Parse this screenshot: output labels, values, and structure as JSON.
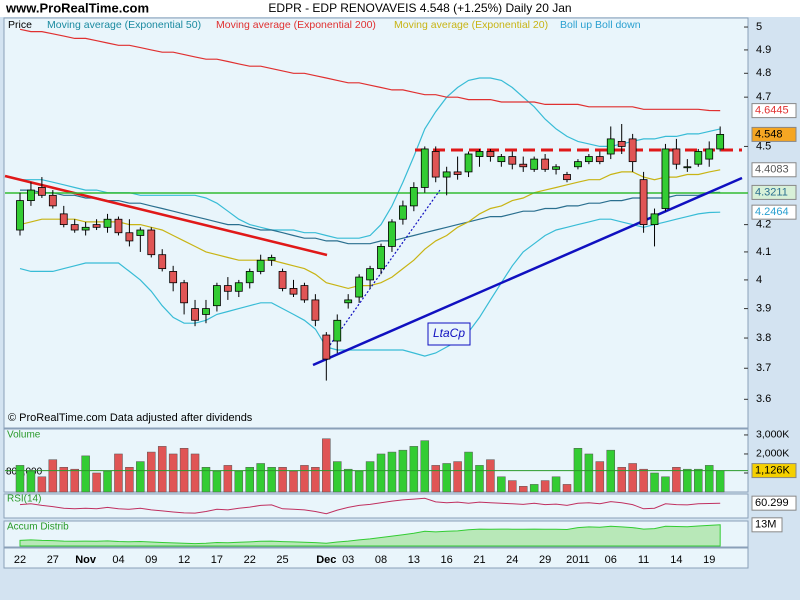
{
  "chart_data": {
    "type": "candlestick",
    "site": "www.ProRealTime.com",
    "title": "EDPR - EDP RENOVAVEIS   4.548 (+1.25%)   Daily  20 Jan",
    "price_label": "Price",
    "copyright": "© ProRealTime.com Data adjusted after dividends",
    "annotation": "LtaCp",
    "log_scale": true,
    "up_color": "#33cc33",
    "down_color": "#e05555",
    "categories": [
      "22",
      null,
      null,
      "27",
      null,
      null,
      "Nov",
      null,
      null,
      "04",
      null,
      null,
      "09",
      null,
      null,
      "12",
      null,
      null,
      "17",
      null,
      null,
      "22",
      null,
      null,
      "25",
      null,
      null,
      null,
      "Dec",
      null,
      "03",
      null,
      null,
      "08",
      null,
      null,
      "13",
      null,
      null,
      "16",
      null,
      null,
      "21",
      null,
      null,
      "24",
      null,
      null,
      "29",
      null,
      null,
      "2011",
      null,
      null,
      "06",
      null,
      null,
      "11",
      null,
      null,
      "14",
      null,
      null,
      "19",
      null
    ],
    "open": [
      4.18,
      4.29,
      4.34,
      4.31,
      4.24,
      4.2,
      4.18,
      4.2,
      4.19,
      4.22,
      4.17,
      4.16,
      4.18,
      4.09,
      4.03,
      3.99,
      3.9,
      3.88,
      3.91,
      3.98,
      3.96,
      3.99,
      4.03,
      4.07,
      4.03,
      3.97,
      3.98,
      3.93,
      3.81,
      3.79,
      3.92,
      3.94,
      4.0,
      4.04,
      4.12,
      4.22,
      4.27,
      4.34,
      4.48,
      4.38,
      4.4,
      4.4,
      4.46,
      4.48,
      4.44,
      4.46,
      4.43,
      4.41,
      4.45,
      4.41,
      4.39,
      4.42,
      4.44,
      4.46,
      4.47,
      4.52,
      4.53,
      4.37,
      4.2,
      4.26,
      4.49,
      4.42,
      4.43,
      4.45,
      4.49
    ],
    "high": [
      4.32,
      4.36,
      4.38,
      4.33,
      4.27,
      4.22,
      4.21,
      4.22,
      4.24,
      4.23,
      4.22,
      4.19,
      4.19,
      4.11,
      4.05,
      4.0,
      3.93,
      3.93,
      3.99,
      4.01,
      4.0,
      4.04,
      4.09,
      4.09,
      4.04,
      4.0,
      3.99,
      3.95,
      3.82,
      3.88,
      3.95,
      4.02,
      4.05,
      4.13,
      4.22,
      4.29,
      4.36,
      4.5,
      4.5,
      4.42,
      4.46,
      4.48,
      4.49,
      4.49,
      4.47,
      4.48,
      4.46,
      4.46,
      4.47,
      4.43,
      4.4,
      4.45,
      4.47,
      4.48,
      4.58,
      4.59,
      4.55,
      4.4,
      4.26,
      4.51,
      4.53,
      4.45,
      4.49,
      4.52,
      4.58
    ],
    "low": [
      4.16,
      4.27,
      4.3,
      4.26,
      4.19,
      4.17,
      4.16,
      4.18,
      4.17,
      4.16,
      4.12,
      4.1,
      4.08,
      4.03,
      3.96,
      3.88,
      3.84,
      3.85,
      3.89,
      3.93,
      3.94,
      3.97,
      4.02,
      4.05,
      3.96,
      3.94,
      3.92,
      3.84,
      3.66,
      3.75,
      3.9,
      3.92,
      3.97,
      4.02,
      4.1,
      4.2,
      4.25,
      4.32,
      4.36,
      4.31,
      4.37,
      4.38,
      4.42,
      4.44,
      4.42,
      4.41,
      4.4,
      4.4,
      4.4,
      4.39,
      4.36,
      4.41,
      4.43,
      4.43,
      4.45,
      4.47,
      4.4,
      4.17,
      4.12,
      4.25,
      4.41,
      4.4,
      4.42,
      4.42,
      4.48
    ],
    "close": [
      4.29,
      4.33,
      4.31,
      4.27,
      4.2,
      4.18,
      4.19,
      4.19,
      4.22,
      4.17,
      4.14,
      4.18,
      4.09,
      4.04,
      3.99,
      3.92,
      3.86,
      3.9,
      3.98,
      3.96,
      3.99,
      4.03,
      4.07,
      4.08,
      3.97,
      3.95,
      3.93,
      3.86,
      3.73,
      3.86,
      3.93,
      4.01,
      4.04,
      4.12,
      4.21,
      4.27,
      4.34,
      4.49,
      4.38,
      4.4,
      4.39,
      4.47,
      4.48,
      4.46,
      4.46,
      4.43,
      4.42,
      4.45,
      4.41,
      4.42,
      4.37,
      4.44,
      4.46,
      4.44,
      4.53,
      4.5,
      4.44,
      4.2,
      4.24,
      4.49,
      4.43,
      4.42,
      4.48,
      4.49,
      4.548
    ],
    "ylim": [
      3.51,
      5.04
    ],
    "yticks": [
      5,
      4.9,
      4.8,
      4.7,
      4.5,
      4.2,
      4.1,
      4,
      3.9,
      3.8,
      3.7,
      3.6
    ],
    "series": [
      {
        "name": "Moving average (Exponential 50)",
        "color": "#2a6f8f",
        "values": [
          4.33,
          4.33,
          4.32,
          4.32,
          4.31,
          4.31,
          4.3,
          4.3,
          4.29,
          4.29,
          4.28,
          4.28,
          4.27,
          4.26,
          4.25,
          4.24,
          4.23,
          4.22,
          4.21,
          4.2,
          4.2,
          4.19,
          4.18,
          4.18,
          4.17,
          4.16,
          4.15,
          4.15,
          4.14,
          4.14,
          4.13,
          4.13,
          4.13,
          4.14,
          4.14,
          4.15,
          4.16,
          4.17,
          4.18,
          4.19,
          4.2,
          4.21,
          4.22,
          4.23,
          4.23,
          4.24,
          4.25,
          4.25,
          4.26,
          4.26,
          4.27,
          4.27,
          4.28,
          4.28,
          4.29,
          4.29,
          4.3,
          4.3,
          4.3,
          4.3,
          4.31,
          4.31,
          4.31,
          4.32,
          4.3211
        ]
      },
      {
        "name": "Moving average (Exponential 200)",
        "color": "#e03030",
        "values": [
          4.99,
          4.98,
          4.98,
          4.97,
          4.96,
          4.95,
          4.95,
          4.94,
          4.93,
          4.92,
          4.92,
          4.91,
          4.9,
          4.89,
          4.89,
          4.88,
          4.87,
          4.86,
          4.86,
          4.85,
          4.84,
          4.83,
          4.83,
          4.82,
          4.81,
          4.8,
          4.8,
          4.79,
          4.78,
          4.77,
          4.76,
          4.76,
          4.75,
          4.74,
          4.73,
          4.73,
          4.72,
          4.71,
          4.71,
          4.7,
          4.7,
          4.69,
          4.69,
          4.69,
          4.68,
          4.68,
          4.68,
          4.68,
          4.67,
          4.67,
          4.67,
          4.67,
          4.66,
          4.66,
          4.66,
          4.66,
          4.66,
          4.65,
          4.65,
          4.65,
          4.65,
          4.65,
          4.65,
          4.645,
          4.6445
        ]
      },
      {
        "name": "Moving average (Exponential 20)",
        "color": "#c8b414",
        "values": [
          4.2,
          4.21,
          4.22,
          4.22,
          4.22,
          4.22,
          4.21,
          4.21,
          4.21,
          4.21,
          4.2,
          4.2,
          4.19,
          4.18,
          4.16,
          4.14,
          4.12,
          4.1,
          4.09,
          4.08,
          4.07,
          4.07,
          4.07,
          4.07,
          4.06,
          4.05,
          4.04,
          4.02,
          3.99,
          3.98,
          3.97,
          3.98,
          3.98,
          3.99,
          4.01,
          4.04,
          4.07,
          4.11,
          4.14,
          4.16,
          4.19,
          4.21,
          4.24,
          4.26,
          4.27,
          4.29,
          4.3,
          4.32,
          4.33,
          4.34,
          4.35,
          4.36,
          4.37,
          4.37,
          4.39,
          4.4,
          4.4,
          4.38,
          4.37,
          4.38,
          4.38,
          4.39,
          4.39,
          4.4,
          4.4083
        ]
      }
    ],
    "bands": {
      "name": "Boll up Boll down",
      "color": "#38bcd6",
      "upper": [
        4.37,
        4.37,
        4.37,
        4.36,
        4.35,
        4.34,
        4.33,
        4.33,
        4.32,
        4.32,
        4.32,
        4.31,
        4.31,
        4.31,
        4.31,
        4.31,
        4.31,
        4.3,
        4.28,
        4.25,
        4.22,
        4.2,
        4.19,
        4.18,
        4.18,
        4.18,
        4.17,
        4.17,
        4.16,
        4.15,
        4.15,
        4.15,
        4.16,
        4.2,
        4.27,
        4.36,
        4.46,
        4.57,
        4.64,
        4.7,
        4.74,
        4.77,
        4.78,
        4.78,
        4.77,
        4.74,
        4.7,
        4.66,
        4.61,
        4.57,
        4.54,
        4.52,
        4.51,
        4.5,
        4.5,
        4.51,
        4.52,
        4.53,
        4.53,
        4.54,
        4.54,
        4.55,
        4.55,
        4.56,
        4.57
      ],
      "lower": [
        4.04,
        4.03,
        4.03,
        4.03,
        4.04,
        4.05,
        4.06,
        4.06,
        4.06,
        4.06,
        4.03,
        4.0,
        3.96,
        3.91,
        3.87,
        3.85,
        3.85,
        3.86,
        3.88,
        3.89,
        3.9,
        3.91,
        3.92,
        3.92,
        3.9,
        3.88,
        3.86,
        3.83,
        3.77,
        3.76,
        3.76,
        3.76,
        3.76,
        3.76,
        3.76,
        3.76,
        3.75,
        3.74,
        3.75,
        3.77,
        3.79,
        3.82,
        3.87,
        3.93,
        3.99,
        4.05,
        4.1,
        4.13,
        4.16,
        4.18,
        4.19,
        4.2,
        4.21,
        4.22,
        4.22,
        4.21,
        4.2,
        4.19,
        4.2,
        4.21,
        4.22,
        4.23,
        4.24,
        4.245,
        4.2464
      ]
    },
    "volume": {
      "label": "Volume",
      "annotation": "800,000",
      "color": "#2a9a2a",
      "values": [
        1400,
        1100,
        800,
        1700,
        1300,
        1200,
        1900,
        1000,
        1100,
        2000,
        1300,
        1600,
        2100,
        2400,
        2000,
        2300,
        2000,
        1300,
        1100,
        1400,
        1100,
        1300,
        1500,
        1300,
        1300,
        1100,
        1400,
        1300,
        2800,
        1600,
        1200,
        1100,
        1600,
        2000,
        2100,
        2200,
        2400,
        2700,
        1400,
        1500,
        1600,
        2100,
        1400,
        1700,
        800,
        600,
        300,
        400,
        600,
        800,
        400,
        2300,
        2000,
        1600,
        2200,
        1300,
        1500,
        1200,
        1000,
        800,
        1300,
        1200,
        1200,
        1400,
        1126
      ],
      "value_labels": [
        null,
        null,
        null,
        null,
        null,
        null,
        null,
        null,
        null,
        null,
        null,
        null,
        null,
        null,
        null,
        null,
        null,
        null,
        null,
        null,
        null,
        null,
        null,
        null,
        null,
        null,
        null,
        null,
        null,
        null,
        null,
        null,
        null,
        null,
        null,
        null,
        null,
        null,
        null,
        null,
        null,
        null,
        null,
        null,
        null,
        null,
        null,
        null,
        null,
        null,
        null,
        null,
        null,
        null,
        null,
        null,
        null,
        null,
        null,
        null,
        null,
        null,
        null,
        null,
        "1,126K"
      ],
      "ylim": [
        0,
        3260
      ],
      "yticks": [
        {
          "value": 3000,
          "label": "3,000K"
        },
        {
          "value": 2000,
          "label": "2,000K"
        },
        {
          "value": 1000,
          "label": "1,000K"
        }
      ]
    },
    "rsi": {
      "label": "RSI(14)",
      "color": "#c03060",
      "ylim": [
        10,
        90
      ],
      "values": [
        55,
        58,
        52,
        48,
        42,
        40,
        42,
        40,
        45,
        40,
        38,
        42,
        36,
        32,
        28,
        25,
        24,
        30,
        38,
        36,
        42,
        46,
        52,
        54,
        40,
        38,
        36,
        30,
        22,
        35,
        45,
        52,
        56,
        62,
        68,
        72,
        75,
        78,
        65,
        62,
        64,
        60,
        64,
        62,
        60,
        58,
        56,
        60,
        55,
        57,
        52,
        60,
        62,
        58,
        66,
        62,
        55,
        40,
        42,
        58,
        55,
        54,
        58,
        59,
        60.299
      ]
    },
    "accum": {
      "label": "Accum Distrib",
      "color": "#33cc33",
      "ylim": [
        -2,
        15
      ],
      "values": [
        2,
        2.3,
        2,
        1.8,
        1.5,
        1.4,
        1.5,
        1.4,
        1.6,
        1.2,
        1,
        1.2,
        0.8,
        0.5,
        0.2,
        0,
        -0.3,
        0,
        0.5,
        0.3,
        0.6,
        0.9,
        1.3,
        1.5,
        1.1,
        0.9,
        0.7,
        0.4,
        0,
        0.8,
        1.5,
        2.3,
        3,
        4,
        5,
        6,
        7,
        8.5,
        8,
        8.5,
        8.7,
        9.5,
        10,
        9.8,
        10,
        9.9,
        9.8,
        10,
        9.8,
        9.9,
        9.7,
        11,
        11.5,
        11.3,
        12,
        11.5,
        11,
        10,
        10.3,
        12,
        11.8,
        11.7,
        12.2,
        12.6,
        13
      ],
      "value_labels": [
        null,
        null,
        null,
        null,
        null,
        null,
        null,
        null,
        null,
        null,
        null,
        null,
        null,
        null,
        null,
        null,
        null,
        null,
        null,
        null,
        null,
        null,
        null,
        null,
        null,
        null,
        null,
        null,
        null,
        null,
        null,
        null,
        null,
        null,
        null,
        null,
        null,
        null,
        null,
        null,
        null,
        null,
        null,
        null,
        null,
        null,
        null,
        null,
        null,
        null,
        null,
        null,
        null,
        null,
        null,
        null,
        null,
        null,
        null,
        null,
        null,
        null,
        null,
        null,
        "13M"
      ]
    }
  }
}
